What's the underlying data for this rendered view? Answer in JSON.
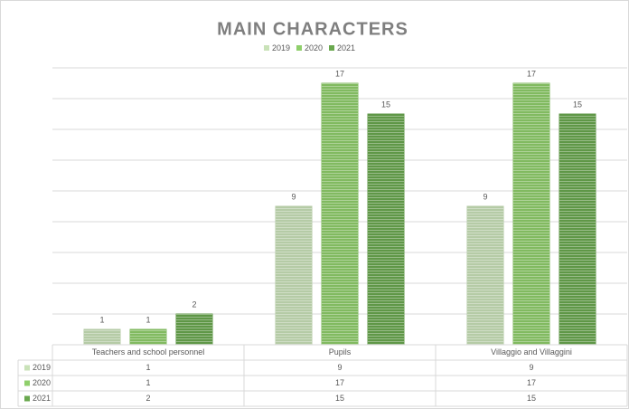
{
  "chart_data": {
    "type": "bar",
    "title": "MAIN CHARACTERS",
    "categories": [
      "Teachers and school personnel",
      "Pupils",
      "Villaggio and Villaggini"
    ],
    "series": [
      {
        "name": "2019",
        "color": "#c9e2b8",
        "values": [
          1,
          9,
          9
        ]
      },
      {
        "name": "2020",
        "color": "#8fcf6b",
        "values": [
          1,
          17,
          17
        ]
      },
      {
        "name": "2021",
        "color": "#6aa84f",
        "values": [
          2,
          15,
          15
        ]
      }
    ],
    "ylim": [
      0,
      18
    ],
    "yticks": [
      0,
      2,
      4,
      6,
      8,
      10,
      12,
      14,
      16,
      18
    ],
    "grid": true,
    "legend": "top",
    "data_table": true
  }
}
